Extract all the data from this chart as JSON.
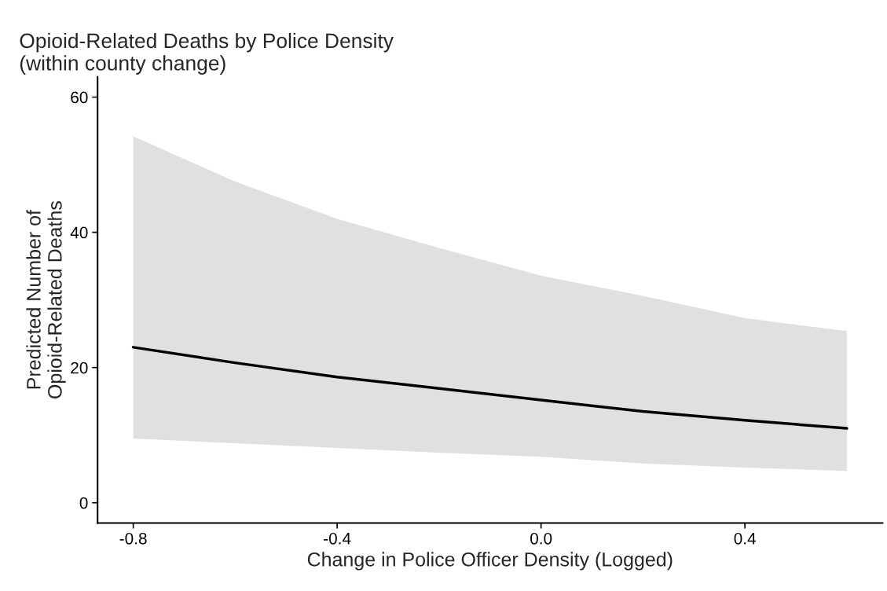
{
  "chart_data": {
    "type": "line",
    "title": "Opioid-Related Deaths by Police Density\n(within county change)",
    "xlabel": "Change in Police Officer Density (Logged)",
    "ylabel": "Predicted Number of\nOpioid-Related Deaths",
    "x": [
      -0.8,
      -0.6,
      -0.4,
      -0.2,
      0.0,
      0.2,
      0.4,
      0.6
    ],
    "series": [
      {
        "color": "#000000",
        "values": [
          23.0,
          20.7,
          18.6,
          16.9,
          15.2,
          13.5,
          12.2,
          11.0
        ],
        "lower": [
          9.5,
          8.8,
          8.1,
          7.4,
          6.8,
          5.8,
          5.2,
          4.7
        ],
        "upper": [
          54.2,
          47.5,
          42.0,
          37.7,
          33.6,
          30.6,
          27.3,
          25.4
        ]
      }
    ],
    "xlim": [
      -0.87,
      0.67
    ],
    "ylim": [
      -3,
      63
    ],
    "xticks": [
      {
        "value": -0.8,
        "label": "-0.8"
      },
      {
        "value": -0.4,
        "label": "-0.4"
      },
      {
        "value": 0.0,
        "label": "0.0"
      },
      {
        "value": 0.4,
        "label": "0.4"
      }
    ],
    "yticks": [
      0,
      20,
      40,
      60
    ],
    "grid": false,
    "line_style": "solid",
    "marker": "none"
  }
}
